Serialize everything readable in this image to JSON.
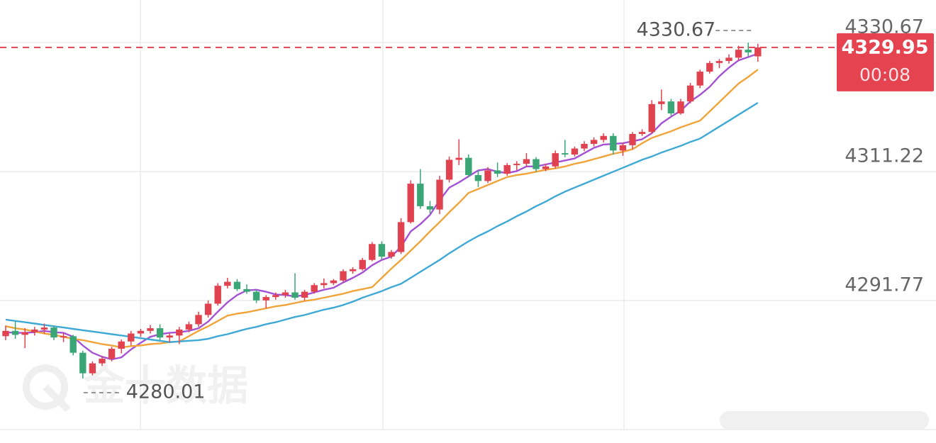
{
  "chart_data": {
    "type": "candlestick",
    "ylim": [
      4272.32,
      4337.1
    ],
    "yticks": [
      4330.67,
      4311.22,
      4291.77
    ],
    "grid": true,
    "up_color": "#e0424f",
    "down_color": "#3aa676",
    "ohlc": [
      [
        4286.4,
        4288.0,
        4285.8,
        4287.2
      ],
      [
        4287.2,
        4288.6,
        4286.0,
        4286.6
      ],
      [
        4286.6,
        4287.6,
        4284.6,
        4287.0
      ],
      [
        4287.0,
        4287.8,
        4286.5,
        4287.4
      ],
      [
        4287.4,
        4288.3,
        4286.8,
        4287.7
      ],
      [
        4287.7,
        4288.0,
        4285.8,
        4286.2
      ],
      [
        4286.2,
        4286.9,
        4285.5,
        4286.4
      ],
      [
        4286.4,
        4286.6,
        4283.5,
        4283.9
      ],
      [
        4283.9,
        4284.2,
        4280.01,
        4280.8
      ],
      [
        4280.8,
        4282.6,
        4280.5,
        4282.3
      ],
      [
        4282.3,
        4283.4,
        4281.9,
        4283.0
      ],
      [
        4283.0,
        4284.8,
        4282.6,
        4284.5
      ],
      [
        4284.5,
        4285.9,
        4283.8,
        4285.6
      ],
      [
        4285.6,
        4287.2,
        4285.0,
        4286.8
      ],
      [
        4286.8,
        4287.5,
        4286.3,
        4287.2
      ],
      [
        4287.2,
        4288.1,
        4286.8,
        4287.6
      ],
      [
        4287.6,
        4288.2,
        4285.8,
        4286.2
      ],
      [
        4286.2,
        4286.8,
        4285.5,
        4286.5
      ],
      [
        4286.5,
        4287.8,
        4285.2,
        4287.4
      ],
      [
        4287.4,
        4288.6,
        4287.0,
        4288.2
      ],
      [
        4288.2,
        4290.1,
        4287.8,
        4289.6
      ],
      [
        4289.6,
        4291.8,
        4289.2,
        4291.3
      ],
      [
        4291.3,
        4294.4,
        4291.0,
        4294.0
      ],
      [
        4294.0,
        4295.2,
        4293.6,
        4294.6
      ],
      [
        4294.6,
        4295.0,
        4293.2,
        4293.5
      ],
      [
        4293.5,
        4294.2,
        4292.8,
        4293.1
      ],
      [
        4293.1,
        4293.4,
        4291.4,
        4291.8
      ],
      [
        4291.8,
        4292.6,
        4290.6,
        4292.3
      ],
      [
        4292.3,
        4293.0,
        4291.9,
        4292.6
      ],
      [
        4292.6,
        4293.4,
        4292.2,
        4293.0
      ],
      [
        4293.0,
        4295.9,
        4291.9,
        4292.2
      ],
      [
        4292.2,
        4293.4,
        4291.8,
        4293.1
      ],
      [
        4293.1,
        4294.4,
        4292.8,
        4294.1
      ],
      [
        4294.1,
        4295.1,
        4293.6,
        4294.4
      ],
      [
        4294.4,
        4295.0,
        4294.1,
        4294.8
      ],
      [
        4294.8,
        4296.5,
        4294.6,
        4296.2
      ],
      [
        4296.2,
        4296.8,
        4295.8,
        4296.5
      ],
      [
        4296.5,
        4298.2,
        4296.3,
        4297.9
      ],
      [
        4297.9,
        4300.6,
        4297.7,
        4300.3
      ],
      [
        4300.3,
        4300.7,
        4298.0,
        4298.4
      ],
      [
        4298.4,
        4299.4,
        4298.1,
        4299.1
      ],
      [
        4299.1,
        4304.2,
        4298.8,
        4303.6
      ],
      [
        4303.6,
        4309.9,
        4303.4,
        4309.4
      ],
      [
        4309.4,
        4311.6,
        4305.6,
        4306.0
      ],
      [
        4306.0,
        4306.8,
        4304.9,
        4305.5
      ],
      [
        4305.5,
        4310.6,
        4304.8,
        4310.0
      ],
      [
        4310.0,
        4313.5,
        4309.6,
        4313.0
      ],
      [
        4313.0,
        4316.1,
        4312.2,
        4313.3
      ],
      [
        4313.3,
        4313.8,
        4310.4,
        4310.7
      ],
      [
        4310.7,
        4311.4,
        4308.9,
        4309.8
      ],
      [
        4309.8,
        4311.9,
        4309.5,
        4311.4
      ],
      [
        4311.4,
        4312.6,
        4310.4,
        4310.9
      ],
      [
        4310.9,
        4312.5,
        4310.6,
        4312.2
      ],
      [
        4312.2,
        4312.8,
        4311.4,
        4312.4
      ],
      [
        4312.4,
        4314.0,
        4312.0,
        4313.1
      ],
      [
        4313.1,
        4313.4,
        4311.2,
        4311.6
      ],
      [
        4311.6,
        4312.4,
        4311.3,
        4312.0
      ],
      [
        4312.0,
        4314.4,
        4311.7,
        4314.0
      ],
      [
        4314.0,
        4316.0,
        4313.4,
        4313.8
      ],
      [
        4313.8,
        4315.0,
        4313.5,
        4314.7
      ],
      [
        4314.7,
        4315.8,
        4314.3,
        4315.4
      ],
      [
        4315.4,
        4316.4,
        4315.0,
        4316.0
      ],
      [
        4316.0,
        4317.0,
        4315.6,
        4316.6
      ],
      [
        4316.6,
        4317.0,
        4313.8,
        4314.4
      ],
      [
        4314.4,
        4315.6,
        4313.6,
        4315.2
      ],
      [
        4315.2,
        4317.2,
        4314.6,
        4316.9
      ],
      [
        4316.9,
        4317.6,
        4316.6,
        4317.2
      ],
      [
        4317.2,
        4322.0,
        4317.0,
        4321.4
      ],
      [
        4321.4,
        4323.6,
        4320.5,
        4321.8
      ],
      [
        4321.8,
        4322.2,
        4319.6,
        4320.0
      ],
      [
        4320.0,
        4322.2,
        4319.8,
        4321.8
      ],
      [
        4321.8,
        4324.6,
        4321.5,
        4324.2
      ],
      [
        4324.2,
        4326.6,
        4323.8,
        4326.3
      ],
      [
        4326.3,
        4327.9,
        4326.0,
        4327.6
      ],
      [
        4327.6,
        4328.2,
        4326.8,
        4327.9
      ],
      [
        4327.9,
        4328.9,
        4327.5,
        4328.4
      ],
      [
        4328.4,
        4330.2,
        4328.0,
        4329.6
      ],
      [
        4329.6,
        4330.67,
        4328.6,
        4329.2
      ],
      [
        4328.6,
        4330.5,
        4327.8,
        4329.95
      ]
    ],
    "series": [
      {
        "color": "#a451d6",
        "values": [
          4287.0,
          4286.9,
          4286.9,
          4287.0,
          4287.2,
          4287.0,
          4286.9,
          4286.3,
          4285.0,
          4283.9,
          4283.3,
          4282.9,
          4283.2,
          4284.4,
          4285.4,
          4286.3,
          4286.7,
          4286.9,
          4287.0,
          4287.2,
          4287.6,
          4288.6,
          4290.1,
          4291.5,
          4292.6,
          4293.3,
          4293.4,
          4293.1,
          4292.7,
          4292.6,
          4292.4,
          4292.6,
          4293.0,
          4293.4,
          4293.7,
          4294.5,
          4295.2,
          4296.0,
          4297.1,
          4297.9,
          4298.4,
          4299.9,
          4302.2,
          4303.3,
          4304.7,
          4306.9,
          4308.8,
          4309.6,
          4310.5,
          4311.4,
          4311.6,
          4311.2,
          4311.0,
          4311.3,
          4312.0,
          4312.0,
          4312.3,
          4312.6,
          4312.9,
          4313.2,
          4314.0,
          4314.8,
          4315.3,
          4315.4,
          4315.5,
          4315.8,
          4316.1,
          4317.0,
          4318.5,
          4319.5,
          4320.4,
          4321.8,
          4322.8,
          4324.0,
          4325.6,
          4326.9,
          4328.0,
          4328.5,
          4329.0
        ]
      },
      {
        "color": "#f0a43a",
        "values": [
          4287.9,
          4287.6,
          4287.4,
          4287.1,
          4286.8,
          4286.6,
          4286.3,
          4286.0,
          4285.8,
          4285.5,
          4285.2,
          4285.0,
          4284.7,
          4284.9,
          4285.0,
          4285.2,
          4285.3,
          4285.5,
          4285.6,
          4286.4,
          4287.2,
          4287.9,
          4288.7,
          4289.5,
          4289.8,
          4290.0,
          4290.3,
          4290.6,
          4290.9,
          4291.1,
          4291.4,
          4291.7,
          4291.9,
          4292.2,
          4292.5,
          4292.8,
          4293.2,
          4293.5,
          4293.8,
          4295.2,
          4296.6,
          4297.9,
          4299.3,
          4300.7,
          4302.2,
          4303.6,
          4305.1,
          4306.5,
          4308.0,
          4308.6,
          4309.2,
          4309.8,
          4310.4,
          4310.7,
          4310.9,
          4311.2,
          4311.5,
          4311.7,
          4312.0,
          4312.4,
          4312.7,
          4313.1,
          4313.5,
          4313.9,
          4314.2,
          4314.6,
          4315.5,
          4316.3,
          4316.8,
          4317.3,
          4317.9,
          4318.4,
          4318.9,
          4320.3,
          4321.7,
          4323.1,
          4324.5,
          4325.5,
          4326.6
        ]
      },
      {
        "color": "#3fa9d6",
        "values": [
          4288.9,
          4288.7,
          4288.5,
          4288.3,
          4288.1,
          4287.9,
          4287.7,
          4287.5,
          4287.3,
          4287.1,
          4286.9,
          4286.7,
          4286.5,
          4286.3,
          4286.1,
          4285.9,
          4285.7,
          4285.5,
          4285.6,
          4285.7,
          4285.8,
          4286.0,
          4286.4,
          4286.7,
          4287.1,
          4287.5,
          4287.8,
          4288.2,
          4288.5,
          4288.9,
          4289.3,
          4289.6,
          4290.0,
          4290.4,
          4290.7,
          4291.1,
          4291.6,
          4292.2,
          4292.7,
          4293.2,
          4293.8,
          4294.3,
          4295.2,
          4296.1,
          4297.0,
          4297.9,
          4298.9,
          4299.8,
          4300.7,
          4301.5,
          4302.2,
          4303.0,
          4303.7,
          4304.5,
          4305.2,
          4306.0,
          4306.7,
          4307.5,
          4308.2,
          4308.8,
          4309.4,
          4310.0,
          4310.6,
          4311.2,
          4311.8,
          4312.4,
          4313.0,
          4313.5,
          4314.1,
          4314.6,
          4315.1,
          4315.7,
          4316.2,
          4317.1,
          4318.0,
          4318.9,
          4319.8,
          4320.7,
          4321.6
        ]
      }
    ],
    "max_marker": {
      "value": 4330.67,
      "index": 77
    },
    "min_marker": {
      "value": 4280.01,
      "index": 8
    },
    "last_price": 4329.95,
    "countdown": "00:08",
    "watermark": "金十数据"
  }
}
